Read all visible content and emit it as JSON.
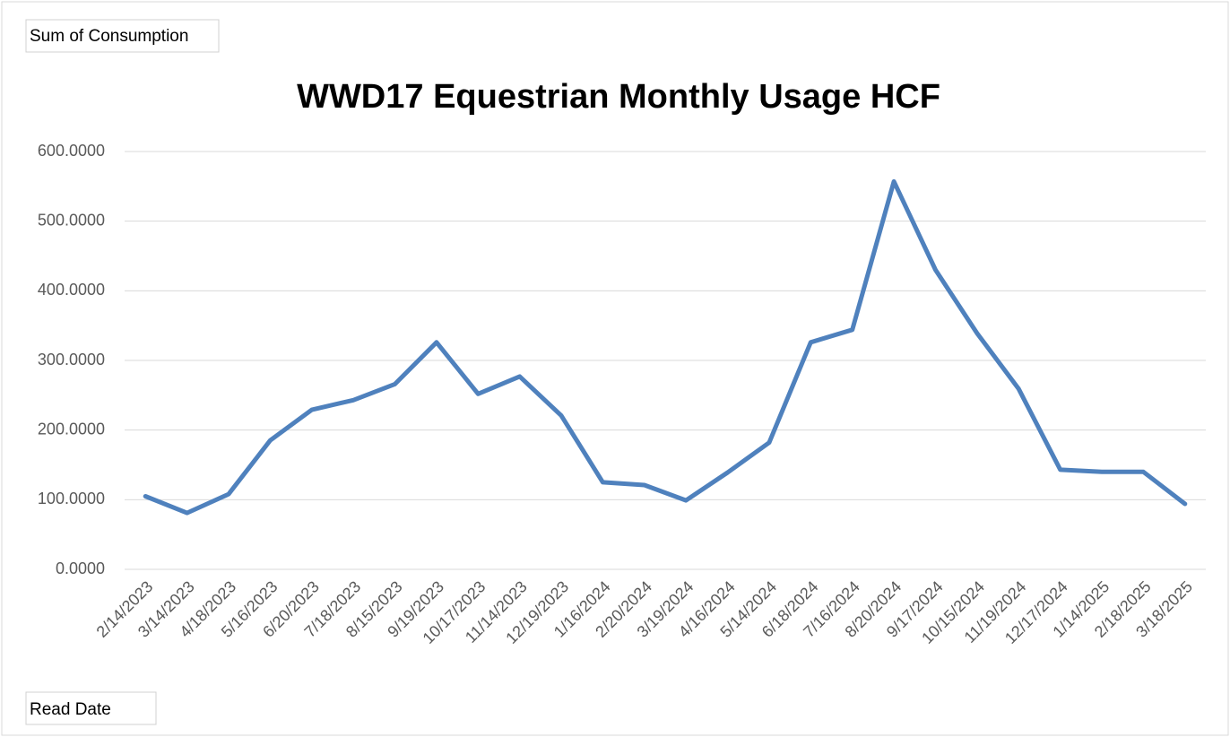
{
  "chart_data": {
    "type": "line",
    "title": "WWD17 Equestrian Monthly Usage HCF",
    "value_field": "Sum of Consumption",
    "axis_field": "Read Date",
    "categories": [
      "2/14/2023",
      "3/14/2023",
      "4/18/2023",
      "5/16/2023",
      "6/20/2023",
      "7/18/2023",
      "8/15/2023",
      "9/19/2023",
      "10/17/2023",
      "11/14/2023",
      "12/19/2023",
      "1/16/2024",
      "2/20/2024",
      "3/19/2024",
      "4/16/2024",
      "5/14/2024",
      "6/18/2024",
      "7/16/2024",
      "8/20/2024",
      "9/17/2024",
      "10/15/2024",
      "11/19/2024",
      "12/17/2024",
      "1/14/2025",
      "2/18/2025",
      "3/18/2025"
    ],
    "values": [
      105,
      81,
      108,
      185,
      229,
      243,
      266,
      326,
      252,
      277,
      221,
      125,
      121,
      99,
      139,
      182,
      326,
      344,
      557,
      430,
      339,
      259,
      143,
      140,
      140,
      94
    ],
    "color": "#4f81bd",
    "ylim": [
      0,
      600
    ],
    "yticks": [
      {
        "value": 0,
        "label": "0.0000"
      },
      {
        "value": 100,
        "label": "100.0000"
      },
      {
        "value": 200,
        "label": "200.0000"
      },
      {
        "value": 300,
        "label": "300.0000"
      },
      {
        "value": 400,
        "label": "400.0000"
      },
      {
        "value": 500,
        "label": "500.0000"
      },
      {
        "value": 600,
        "label": "600.0000"
      }
    ],
    "grid": true
  }
}
